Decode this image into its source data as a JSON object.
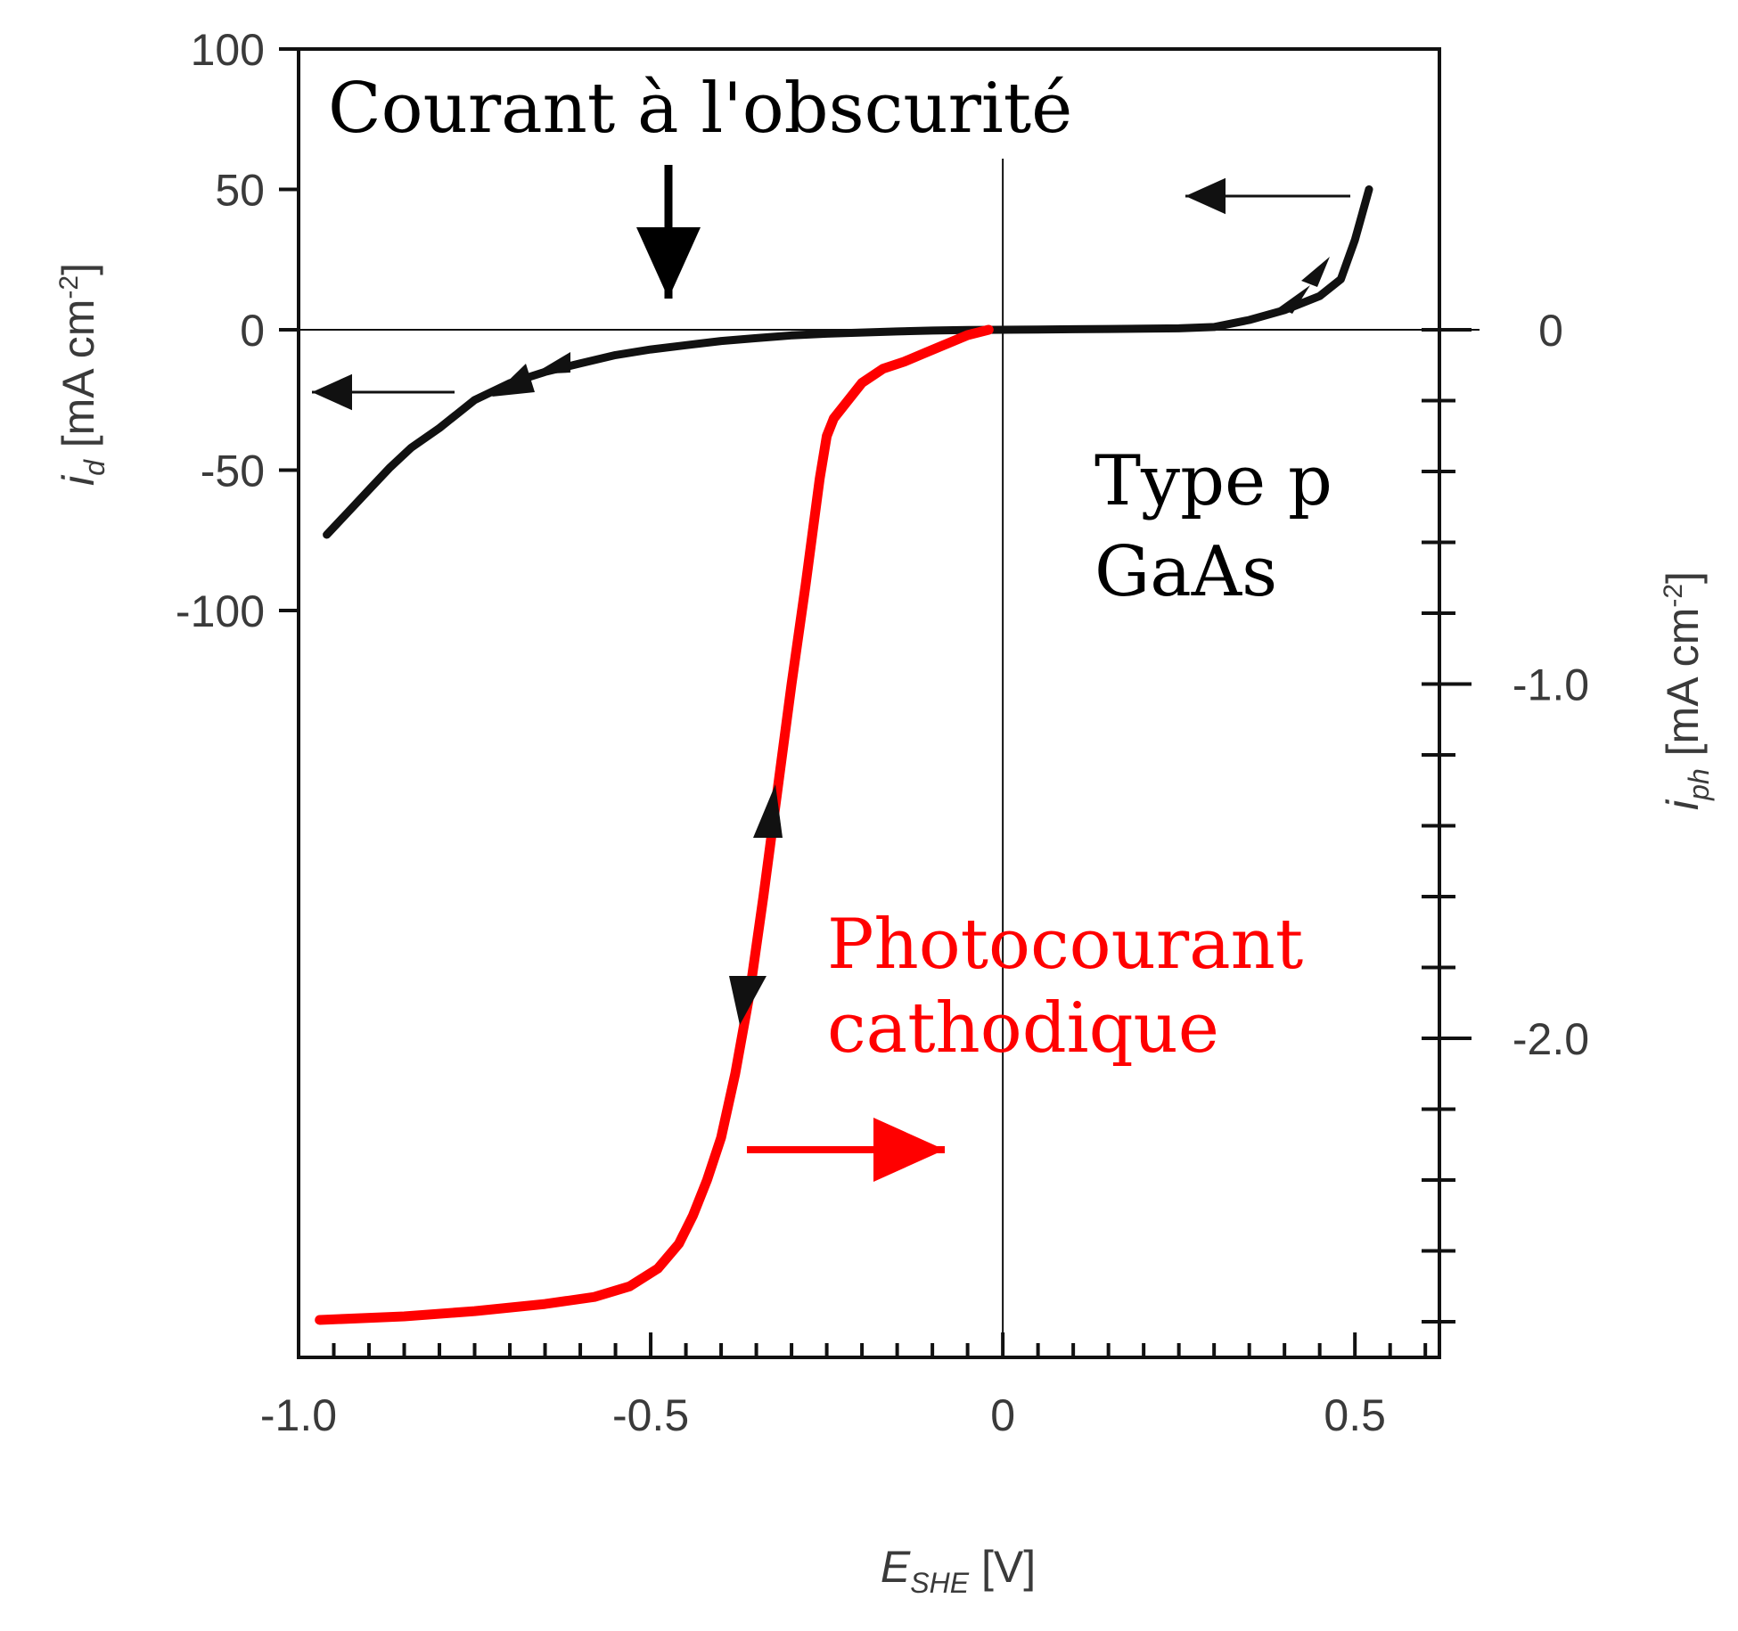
{
  "chart_data": {
    "type": "line",
    "xlabel": {
      "main": "E",
      "sub": "SHE",
      "unit": " [V]"
    },
    "ylabel_left": {
      "main": "i",
      "sub": "d",
      "unit": " [mA cm",
      "sup": "-2",
      "close": "]"
    },
    "ylabel_right": {
      "main": "i",
      "sub": "ph",
      "unit": " [mA cm",
      "sup": "-2",
      "close": "]"
    },
    "xlim": [
      -1.0,
      0.62
    ],
    "ylim_left": [
      -150,
      100
    ],
    "ylim_right": [
      -2.8,
      0.0
    ],
    "x_ticks": [
      -1.0,
      -0.5,
      0,
      0.5
    ],
    "x_tick_labels": [
      "-1.0",
      "-0.5",
      "0",
      "0.5"
    ],
    "y_left_ticks": [
      100,
      50,
      0,
      -50,
      -100
    ],
    "y_left_tick_labels": [
      "100",
      "50",
      "0",
      "-50",
      "-100"
    ],
    "y_right_ticks": [
      0,
      -1.0,
      -2.0
    ],
    "y_right_tick_labels": [
      "0",
      "-1.0",
      "-2.0"
    ],
    "grid": false,
    "series": [
      {
        "axis": "left",
        "color": "#111111",
        "x": [
          -0.96,
          -0.93,
          -0.9,
          -0.87,
          -0.84,
          -0.8,
          -0.75,
          -0.7,
          -0.65,
          -0.6,
          -0.55,
          -0.5,
          -0.45,
          -0.4,
          -0.35,
          -0.3,
          -0.25,
          -0.2,
          -0.15,
          -0.1,
          -0.05,
          0.0,
          0.05,
          0.1,
          0.15,
          0.2,
          0.25,
          0.3,
          0.35,
          0.4,
          0.45,
          0.48,
          0.5,
          0.52
        ],
        "y": [
          -73,
          -65,
          -57,
          -49,
          -42,
          -35,
          -25,
          -19,
          -15,
          -12,
          -9,
          -7,
          -5.5,
          -4,
          -3,
          -2,
          -1.4,
          -1,
          -0.6,
          -0.3,
          -0.1,
          0,
          0.1,
          0.2,
          0.3,
          0.4,
          0.5,
          1,
          3.5,
          7,
          12,
          18,
          32,
          50
        ]
      },
      {
        "axis": "right",
        "color": "#ff0000",
        "x": [
          -0.97,
          -0.85,
          -0.75,
          -0.65,
          -0.58,
          -0.53,
          -0.49,
          -0.46,
          -0.44,
          -0.42,
          -0.4,
          -0.38,
          -0.36,
          -0.34,
          -0.32,
          -0.3,
          -0.28,
          -0.26,
          -0.25,
          -0.24,
          -0.22,
          -0.2,
          -0.17,
          -0.14,
          -0.11,
          -0.08,
          -0.05,
          -0.02
        ],
        "y": [
          -2.795,
          -2.785,
          -2.77,
          -2.75,
          -2.73,
          -2.7,
          -2.65,
          -2.58,
          -2.5,
          -2.4,
          -2.28,
          -2.1,
          -1.88,
          -1.6,
          -1.3,
          -1.0,
          -0.72,
          -0.42,
          -0.3,
          -0.25,
          -0.2,
          -0.15,
          -0.11,
          -0.09,
          -0.065,
          -0.04,
          -0.015,
          0.0
        ]
      }
    ],
    "annotations": {
      "dark_current": "Courant à l'obscurité",
      "type_line1": "Type p",
      "type_line2": "GaAs",
      "photo_line1": "Photocourant",
      "photo_line2": "cathodique"
    },
    "colors": {
      "dark_curve": "#111111",
      "photo_curve": "#ff0000",
      "axis": "#111111"
    }
  }
}
